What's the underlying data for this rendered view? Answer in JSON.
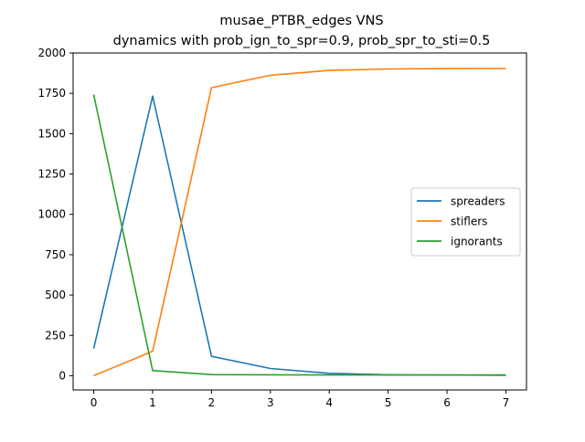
{
  "chart_data": {
    "type": "line",
    "title": "musae_PTBR_edges VNS",
    "subtitle": "dynamics with prob_ign_to_spr=0.9, prob_spr_to_sti=0.5",
    "xlabel": "",
    "ylabel": "",
    "x": [
      0,
      1,
      2,
      3,
      4,
      5,
      6,
      7
    ],
    "xlim": [
      -0.35,
      7.35
    ],
    "ylim": [
      -88,
      2000
    ],
    "xticks": [
      "0",
      "1",
      "2",
      "3",
      "4",
      "5",
      "6",
      "7"
    ],
    "yticks": [
      "0",
      "250",
      "500",
      "750",
      "1000",
      "1250",
      "1500",
      "1750",
      "2000"
    ],
    "grid": false,
    "legend_position": "center-right",
    "series": [
      {
        "name": "spreaders",
        "color": "#1f77b4",
        "values": [
          168,
          1733,
          120,
          45,
          15,
          6,
          4,
          3
        ]
      },
      {
        "name": "stiflers",
        "color": "#ff7f0e",
        "values": [
          0,
          152,
          1785,
          1862,
          1892,
          1901,
          1903,
          1904
        ]
      },
      {
        "name": "ignorants",
        "color": "#2ca02c",
        "values": [
          1742,
          32,
          7,
          6,
          5,
          5,
          5,
          5
        ]
      }
    ]
  }
}
